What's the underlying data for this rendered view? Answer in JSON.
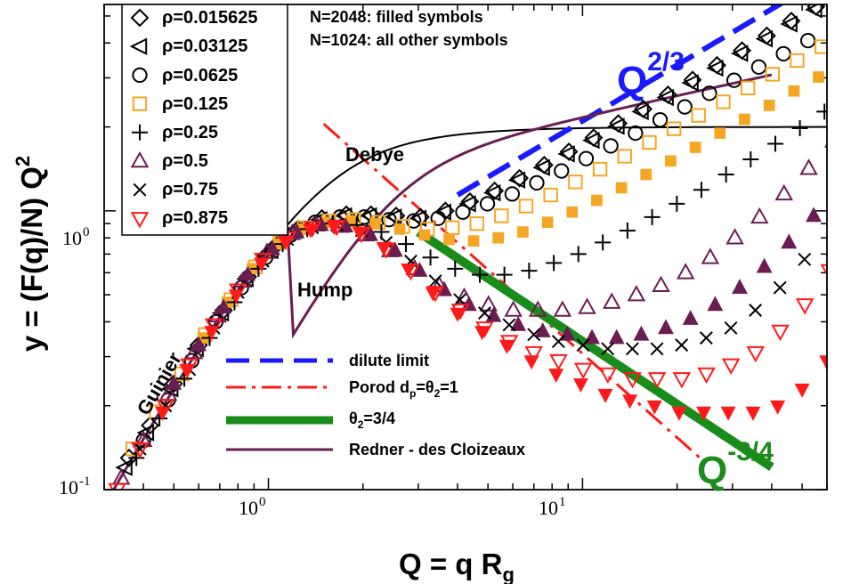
{
  "chart_data": {
    "type": "scatter",
    "scale": "log-log",
    "xlabel_main": "Q = q R",
    "xlabel_sub": "g",
    "ylabel": "y = (F(q)/N) Q",
    "ylabel_sup": "2",
    "xlim": [
      0.3,
      60
    ],
    "ylim": [
      0.1,
      5.5
    ],
    "x_ticks": [
      {
        "value": 1,
        "base": "10",
        "exp": "0"
      },
      {
        "value": 10,
        "base": "10",
        "exp": "1"
      }
    ],
    "y_ticks": [
      {
        "value": 0.1,
        "base": "10",
        "exp": "-1"
      },
      {
        "value": 1,
        "base": "10",
        "exp": "0"
      }
    ],
    "info_line1": "N=2048: filled symbols",
    "info_line2": "N=1024: all other symbols",
    "legend_labels": {
      "s0": "ρ=0.015625",
      "s1": "ρ=0.03125",
      "s2": "ρ=0.0625",
      "s3": "ρ=0.125",
      "s4": "ρ=0.25",
      "s5": "ρ=0.5",
      "s6": "ρ=0.75",
      "s7": "ρ=0.875"
    },
    "line_legend": {
      "dilute": "dilute limit",
      "porod_main": "Porod d",
      "porod_sub": "p",
      "porod_mid": "=θ",
      "porod_sub2": "2",
      "porod_end": "=1",
      "theta_main": "θ",
      "theta_sub": "2",
      "theta_end": "=3/4",
      "redner": "Redner - des Cloizeaux"
    },
    "annotations": {
      "debye": "Debye",
      "hump": "Hump",
      "guinier": "Guinier",
      "q23_main": "Q",
      "q23_exp": "2/3",
      "q34_main": "Q",
      "q34_exp": "-3/4"
    },
    "colors": {
      "black": "#000000",
      "orange": "#f5a623",
      "purple": "#6b1d52",
      "red": "#ff1a1a",
      "blue": "#1a1aff",
      "green": "#1a8c1a"
    },
    "series": [
      {
        "name": "ρ=0.015625",
        "marker": "diamond",
        "color": "#000000",
        "x": [
          0.36,
          0.42,
          0.5,
          0.6,
          0.72,
          0.86,
          1.03,
          1.24,
          1.48,
          1.77,
          2.12,
          2.55,
          3.05,
          3.66,
          4.38,
          5.25,
          6.3,
          7.55,
          9.05,
          10.85,
          13,
          15.6,
          18.7,
          22.4,
          26.8,
          32.2,
          38.6,
          46.2,
          55.4
        ],
        "y": [
          0.13,
          0.17,
          0.24,
          0.33,
          0.44,
          0.58,
          0.73,
          0.86,
          0.94,
          0.97,
          0.97,
          0.96,
          0.95,
          1.0,
          1.08,
          1.18,
          1.31,
          1.46,
          1.63,
          1.83,
          2.06,
          2.32,
          2.61,
          2.95,
          3.33,
          3.76,
          4.25,
          4.8,
          5.4
        ]
      },
      {
        "name": "ρ=0.03125",
        "marker": "triangle-left",
        "color": "#000000",
        "x": [
          0.35,
          0.41,
          0.49,
          0.59,
          0.71,
          0.85,
          1.02,
          1.22,
          1.46,
          1.75,
          2.1,
          2.52,
          3.02,
          3.62,
          4.34,
          5.2,
          6.23,
          7.47,
          8.96,
          10.74,
          12.9,
          15.4,
          18.5,
          22.2,
          26.6,
          31.9,
          38.2,
          45.8,
          54.9
        ],
        "y": [
          0.12,
          0.16,
          0.23,
          0.32,
          0.43,
          0.57,
          0.72,
          0.85,
          0.93,
          0.96,
          0.96,
          0.95,
          0.94,
          0.99,
          1.06,
          1.16,
          1.29,
          1.43,
          1.6,
          1.79,
          2.01,
          2.27,
          2.55,
          2.88,
          3.25,
          3.67,
          4.14,
          4.68,
          5.27
        ]
      },
      {
        "name": "ρ=0.0625",
        "marker": "circle",
        "color": "#000000",
        "x": [
          0.4,
          0.48,
          0.57,
          0.68,
          0.82,
          0.98,
          1.18,
          1.41,
          1.69,
          2.02,
          2.42,
          2.9,
          3.47,
          4.16,
          4.98,
          5.97,
          7.15,
          8.57,
          10.27,
          12.3,
          14.74,
          17.66,
          21.16,
          25.35,
          30.37,
          36.4,
          43.6,
          52.2
        ],
        "y": [
          0.15,
          0.21,
          0.29,
          0.4,
          0.53,
          0.68,
          0.82,
          0.91,
          0.95,
          0.95,
          0.93,
          0.92,
          0.94,
          0.99,
          1.06,
          1.15,
          1.26,
          1.39,
          1.54,
          1.71,
          1.9,
          2.12,
          2.36,
          2.64,
          2.94,
          3.28,
          3.66,
          4.08
        ]
      },
      {
        "name": "ρ=0.125",
        "marker": "square-open",
        "color": "#f5a623",
        "x": [
          0.37,
          0.44,
          0.53,
          0.63,
          0.76,
          0.91,
          1.09,
          1.3,
          1.56,
          1.87,
          2.24,
          2.68,
          3.21,
          3.85,
          4.61,
          5.52,
          6.61,
          7.92,
          9.49,
          11.37,
          13.62,
          16.32,
          19.55,
          23.4,
          28.05,
          33.6,
          40.25,
          48.2,
          57.8
        ],
        "y": [
          0.14,
          0.19,
          0.26,
          0.36,
          0.48,
          0.63,
          0.77,
          0.87,
          0.92,
          0.93,
          0.91,
          0.88,
          0.86,
          0.87,
          0.9,
          0.96,
          1.04,
          1.14,
          1.27,
          1.41,
          1.57,
          1.76,
          1.97,
          2.2,
          2.46,
          2.76,
          3.09,
          3.46,
          3.88
        ]
      },
      {
        "name": "ρ=0.125 (N=2048)",
        "marker": "square-filled",
        "color": "#f5a623",
        "x": [
          0.62,
          0.74,
          0.89,
          1.07,
          1.28,
          1.53,
          1.83,
          2.19,
          2.62,
          3.14,
          3.76,
          4.5,
          5.39,
          6.46,
          7.74,
          9.27,
          11.1,
          13.3,
          15.93,
          19.08,
          22.86,
          27.38,
          32.8,
          39.3,
          47.1,
          56.4
        ],
        "y": [
          0.35,
          0.47,
          0.62,
          0.76,
          0.86,
          0.91,
          0.92,
          0.9,
          0.86,
          0.82,
          0.79,
          0.78,
          0.8,
          0.84,
          0.91,
          0.99,
          1.09,
          1.21,
          1.35,
          1.51,
          1.69,
          1.9,
          2.13,
          2.39,
          2.69,
          3.02
        ]
      },
      {
        "name": "ρ=0.25",
        "marker": "plus",
        "color": "#000000",
        "x": [
          0.38,
          0.45,
          0.54,
          0.65,
          0.78,
          0.93,
          1.11,
          1.33,
          1.6,
          1.91,
          2.29,
          2.74,
          3.28,
          3.93,
          4.71,
          5.64,
          6.76,
          8.1,
          9.7,
          11.6,
          13.9,
          16.66,
          19.96,
          23.9,
          28.64,
          34.3,
          41.1,
          49.2,
          58.9
        ],
        "y": [
          0.13,
          0.18,
          0.25,
          0.35,
          0.47,
          0.62,
          0.76,
          0.86,
          0.9,
          0.89,
          0.84,
          0.76,
          0.68,
          0.62,
          0.59,
          0.59,
          0.61,
          0.65,
          0.7,
          0.77,
          0.85,
          0.95,
          1.06,
          1.19,
          1.35,
          1.53,
          1.74,
          1.98,
          2.27
        ]
      },
      {
        "name": "ρ=0.5",
        "marker": "triangle-up-open",
        "color": "#6b1d52",
        "x": [
          0.34,
          0.4,
          0.48,
          0.58,
          0.69,
          0.83,
          0.99,
          1.19,
          1.42,
          1.7,
          2.04,
          2.44,
          2.92,
          3.5,
          4.2,
          5.02,
          6.02,
          7.21,
          8.63,
          10.34,
          12.39,
          14.84,
          17.77,
          21.29,
          25.5,
          30.55,
          36.6,
          43.8,
          52.5,
          62.9
        ],
        "y": [
          0.11,
          0.15,
          0.22,
          0.31,
          0.42,
          0.56,
          0.71,
          0.83,
          0.89,
          0.88,
          0.82,
          0.72,
          0.62,
          0.54,
          0.49,
          0.46,
          0.44,
          0.44,
          0.44,
          0.45,
          0.47,
          0.5,
          0.54,
          0.6,
          0.68,
          0.8,
          0.95,
          1.15,
          1.42,
          1.78
        ]
      },
      {
        "name": "ρ=0.5 (N=2048)",
        "marker": "triangle-up-filled",
        "color": "#6b1d52",
        "x": [
          0.5,
          0.6,
          0.72,
          0.86,
          1.03,
          1.23,
          1.47,
          1.76,
          2.11,
          2.53,
          3.03,
          3.63,
          4.35,
          5.21,
          6.24,
          7.47,
          8.95,
          10.72,
          12.84,
          15.38,
          18.42,
          22.06,
          26.43,
          31.65,
          37.9,
          45.4,
          54.4
        ],
        "y": [
          0.24,
          0.33,
          0.45,
          0.59,
          0.73,
          0.84,
          0.89,
          0.88,
          0.82,
          0.72,
          0.61,
          0.52,
          0.46,
          0.42,
          0.39,
          0.37,
          0.36,
          0.35,
          0.35,
          0.36,
          0.38,
          0.41,
          0.46,
          0.53,
          0.63,
          0.77,
          0.96
        ]
      },
      {
        "name": "ρ=0.75",
        "marker": "cross",
        "color": "#000000",
        "x": [
          0.39,
          0.47,
          0.56,
          0.67,
          0.8,
          0.96,
          1.15,
          1.38,
          1.65,
          1.98,
          2.37,
          2.84,
          3.4,
          4.07,
          4.88,
          5.84,
          7.0,
          8.38,
          10.04,
          12.03,
          14.41,
          17.26,
          20.67,
          24.76,
          29.66,
          35.5,
          42.5,
          50.9
        ],
        "y": [
          0.14,
          0.2,
          0.27,
          0.38,
          0.51,
          0.66,
          0.79,
          0.87,
          0.89,
          0.85,
          0.77,
          0.66,
          0.56,
          0.48,
          0.43,
          0.39,
          0.36,
          0.34,
          0.33,
          0.32,
          0.32,
          0.32,
          0.33,
          0.35,
          0.38,
          0.44,
          0.53,
          0.67
        ]
      },
      {
        "name": "ρ=0.875",
        "marker": "triangle-down-open",
        "color": "#ff1a1a",
        "x": [
          0.33,
          0.39,
          0.47,
          0.56,
          0.67,
          0.8,
          0.96,
          1.15,
          1.38,
          1.65,
          1.98,
          2.37,
          2.84,
          3.4,
          4.08,
          4.88,
          5.85,
          7.0,
          8.39,
          10.05,
          12.04,
          14.42,
          17.27,
          20.7,
          24.8,
          29.7,
          35.55,
          42.6,
          51.0,
          61.1
        ],
        "y": [
          0.1,
          0.14,
          0.2,
          0.28,
          0.39,
          0.52,
          0.67,
          0.8,
          0.87,
          0.88,
          0.83,
          0.73,
          0.61,
          0.51,
          0.44,
          0.38,
          0.34,
          0.31,
          0.29,
          0.27,
          0.26,
          0.25,
          0.25,
          0.25,
          0.26,
          0.28,
          0.31,
          0.37,
          0.46,
          0.61
        ]
      },
      {
        "name": "ρ=0.875 (N=2048)",
        "marker": "triangle-down-filled",
        "color": "#ff1a1a",
        "x": [
          0.46,
          0.55,
          0.66,
          0.79,
          0.95,
          1.13,
          1.36,
          1.62,
          1.95,
          2.33,
          2.79,
          3.34,
          4.0,
          4.79,
          5.74,
          6.88,
          8.24,
          9.87,
          11.82,
          14.15,
          16.95,
          20.3,
          24.3,
          29.1,
          34.9,
          41.8,
          50.0,
          59.9
        ],
        "y": [
          0.19,
          0.27,
          0.37,
          0.5,
          0.65,
          0.78,
          0.86,
          0.88,
          0.84,
          0.74,
          0.62,
          0.51,
          0.43,
          0.37,
          0.33,
          0.29,
          0.26,
          0.24,
          0.22,
          0.21,
          0.2,
          0.19,
          0.19,
          0.19,
          0.19,
          0.2,
          0.23,
          0.29
        ]
      }
    ],
    "lines": [
      {
        "name": "Debye",
        "style": "solid-thin",
        "color": "#000000",
        "function": "debye",
        "xrange": [
          0.3,
          60
        ]
      },
      {
        "name": "dilute limit",
        "style": "dashed-thick",
        "color": "#1a1aff",
        "function": "power",
        "slope": 0.6667,
        "anchor": [
          4,
          1.14
        ],
        "xrange": [
          4,
          60
        ]
      },
      {
        "name": "Porod dp=θ2=1",
        "style": "dash-dot",
        "color": "#ff1a1a",
        "function": "power",
        "slope": -1,
        "anchor": [
          1.5,
          2.05
        ],
        "xrange": [
          1.5,
          24
        ]
      },
      {
        "name": "θ2=3/4",
        "style": "solid-thick",
        "color": "#1a8c1a",
        "function": "power",
        "slope": -0.75,
        "anchor": [
          3,
          0.84
        ],
        "xrange": [
          3,
          40
        ]
      },
      {
        "name": "Redner - des Cloizeaux",
        "style": "solid-medium",
        "color": "#6b1d52",
        "function": "redner",
        "xrange": [
          0.3,
          40
        ]
      }
    ]
  }
}
